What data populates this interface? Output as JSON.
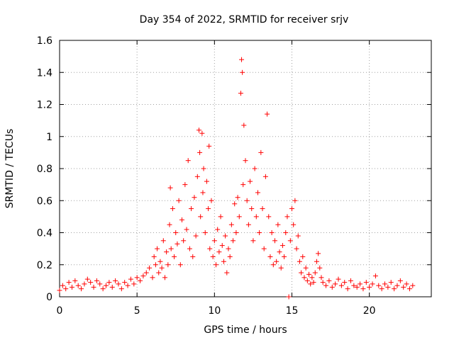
{
  "chart_data": {
    "type": "scatter",
    "title": "Day 354 of 2022, SRMTID for receiver srjv",
    "xlabel": "GPS time / hours",
    "ylabel": "SRMTID / TECUs",
    "xlim": [
      0,
      24
    ],
    "ylim": [
      0,
      1.6
    ],
    "xticks": [
      0,
      5,
      10,
      15,
      20
    ],
    "xtick_labels": [
      "0",
      "5",
      "10",
      "15",
      "20"
    ],
    "yticks": [
      0,
      0.2,
      0.4,
      0.6,
      0.8,
      1,
      1.2,
      1.4,
      1.6
    ],
    "ytick_labels": [
      "0",
      "0.2",
      "0.4",
      "0.6",
      "0.8",
      "1",
      "1.2",
      "1.4",
      "1.6"
    ],
    "grid": true,
    "marker": "+",
    "series": [
      {
        "name": "SRMTID",
        "color": "#ff0000",
        "points": [
          [
            0.0,
            0.04
          ],
          [
            0.2,
            0.07
          ],
          [
            0.4,
            0.05
          ],
          [
            0.6,
            0.09
          ],
          [
            0.8,
            0.06
          ],
          [
            1.0,
            0.1
          ],
          [
            1.2,
            0.07
          ],
          [
            1.4,
            0.05
          ],
          [
            1.6,
            0.08
          ],
          [
            1.8,
            0.11
          ],
          [
            2.0,
            0.09
          ],
          [
            2.2,
            0.06
          ],
          [
            2.4,
            0.1
          ],
          [
            2.6,
            0.08
          ],
          [
            2.8,
            0.05
          ],
          [
            3.0,
            0.07
          ],
          [
            3.2,
            0.09
          ],
          [
            3.4,
            0.06
          ],
          [
            3.6,
            0.1
          ],
          [
            3.8,
            0.08
          ],
          [
            4.0,
            0.05
          ],
          [
            4.2,
            0.09
          ],
          [
            4.4,
            0.07
          ],
          [
            4.6,
            0.11
          ],
          [
            4.8,
            0.08
          ],
          [
            5.0,
            0.12
          ],
          [
            5.2,
            0.1
          ],
          [
            5.4,
            0.13
          ],
          [
            5.6,
            0.15
          ],
          [
            5.8,
            0.18
          ],
          [
            6.0,
            0.12
          ],
          [
            6.1,
            0.25
          ],
          [
            6.2,
            0.2
          ],
          [
            6.3,
            0.3
          ],
          [
            6.4,
            0.15
          ],
          [
            6.5,
            0.22
          ],
          [
            6.6,
            0.18
          ],
          [
            6.7,
            0.35
          ],
          [
            6.8,
            0.12
          ],
          [
            6.9,
            0.28
          ],
          [
            7.0,
            0.2
          ],
          [
            7.1,
            0.45
          ],
          [
            7.15,
            0.68
          ],
          [
            7.2,
            0.3
          ],
          [
            7.3,
            0.55
          ],
          [
            7.4,
            0.25
          ],
          [
            7.5,
            0.4
          ],
          [
            7.6,
            0.33
          ],
          [
            7.7,
            0.6
          ],
          [
            7.8,
            0.2
          ],
          [
            7.9,
            0.48
          ],
          [
            8.0,
            0.35
          ],
          [
            8.1,
            0.7
          ],
          [
            8.2,
            0.42
          ],
          [
            8.3,
            0.85
          ],
          [
            8.4,
            0.3
          ],
          [
            8.5,
            0.55
          ],
          [
            8.6,
            0.25
          ],
          [
            8.7,
            0.62
          ],
          [
            8.8,
            0.38
          ],
          [
            8.9,
            0.75
          ],
          [
            9.0,
            1.04
          ],
          [
            9.05,
            0.9
          ],
          [
            9.1,
            0.5
          ],
          [
            9.2,
            1.02
          ],
          [
            9.25,
            0.65
          ],
          [
            9.3,
            0.8
          ],
          [
            9.4,
            0.4
          ],
          [
            9.5,
            0.72
          ],
          [
            9.6,
            0.55
          ],
          [
            9.65,
            0.94
          ],
          [
            9.7,
            0.3
          ],
          [
            9.8,
            0.6
          ],
          [
            9.9,
            0.25
          ],
          [
            10.0,
            0.35
          ],
          [
            10.1,
            0.2
          ],
          [
            10.2,
            0.42
          ],
          [
            10.3,
            0.28
          ],
          [
            10.4,
            0.5
          ],
          [
            10.5,
            0.32
          ],
          [
            10.6,
            0.22
          ],
          [
            10.7,
            0.38
          ],
          [
            10.8,
            0.15
          ],
          [
            10.9,
            0.3
          ],
          [
            11.0,
            0.25
          ],
          [
            11.1,
            0.45
          ],
          [
            11.2,
            0.35
          ],
          [
            11.3,
            0.58
          ],
          [
            11.4,
            0.4
          ],
          [
            11.5,
            0.62
          ],
          [
            11.6,
            0.5
          ],
          [
            11.7,
            1.27
          ],
          [
            11.75,
            1.48
          ],
          [
            11.8,
            1.4
          ],
          [
            11.85,
            0.7
          ],
          [
            11.9,
            1.07
          ],
          [
            12.0,
            0.85
          ],
          [
            12.1,
            0.6
          ],
          [
            12.2,
            0.45
          ],
          [
            12.3,
            0.72
          ],
          [
            12.4,
            0.55
          ],
          [
            12.5,
            0.35
          ],
          [
            12.6,
            0.8
          ],
          [
            12.7,
            0.5
          ],
          [
            12.8,
            0.65
          ],
          [
            12.9,
            0.4
          ],
          [
            13.0,
            0.9
          ],
          [
            13.1,
            0.55
          ],
          [
            13.2,
            0.3
          ],
          [
            13.3,
            0.75
          ],
          [
            13.4,
            1.14
          ],
          [
            13.5,
            0.5
          ],
          [
            13.6,
            0.25
          ],
          [
            13.7,
            0.4
          ],
          [
            13.8,
            0.2
          ],
          [
            13.9,
            0.35
          ],
          [
            14.0,
            0.22
          ],
          [
            14.1,
            0.45
          ],
          [
            14.2,
            0.28
          ],
          [
            14.3,
            0.18
          ],
          [
            14.4,
            0.32
          ],
          [
            14.5,
            0.25
          ],
          [
            14.6,
            0.4
          ],
          [
            14.7,
            0.5
          ],
          [
            14.8,
            0.0
          ],
          [
            14.9,
            0.35
          ],
          [
            15.0,
            0.55
          ],
          [
            15.1,
            0.45
          ],
          [
            15.2,
            0.6
          ],
          [
            15.3,
            0.3
          ],
          [
            15.4,
            0.38
          ],
          [
            15.5,
            0.22
          ],
          [
            15.6,
            0.15
          ],
          [
            15.7,
            0.25
          ],
          [
            15.8,
            0.12
          ],
          [
            15.9,
            0.18
          ],
          [
            16.0,
            0.1
          ],
          [
            16.1,
            0.14
          ],
          [
            16.2,
            0.08
          ],
          [
            16.3,
            0.12
          ],
          [
            16.4,
            0.09
          ],
          [
            16.5,
            0.15
          ],
          [
            16.6,
            0.22
          ],
          [
            16.7,
            0.27
          ],
          [
            16.8,
            0.18
          ],
          [
            16.9,
            0.12
          ],
          [
            17.0,
            0.09
          ],
          [
            17.2,
            0.07
          ],
          [
            17.4,
            0.1
          ],
          [
            17.6,
            0.06
          ],
          [
            17.8,
            0.08
          ],
          [
            18.0,
            0.11
          ],
          [
            18.2,
            0.07
          ],
          [
            18.4,
            0.09
          ],
          [
            18.6,
            0.05
          ],
          [
            18.8,
            0.1
          ],
          [
            19.0,
            0.07
          ],
          [
            19.2,
            0.06
          ],
          [
            19.4,
            0.08
          ],
          [
            19.6,
            0.05
          ],
          [
            19.8,
            0.09
          ],
          [
            20.0,
            0.06
          ],
          [
            20.2,
            0.08
          ],
          [
            20.4,
            0.13
          ],
          [
            20.6,
            0.07
          ],
          [
            20.8,
            0.05
          ],
          [
            21.0,
            0.08
          ],
          [
            21.2,
            0.06
          ],
          [
            21.4,
            0.09
          ],
          [
            21.6,
            0.05
          ],
          [
            21.8,
            0.07
          ],
          [
            22.0,
            0.1
          ],
          [
            22.2,
            0.06
          ],
          [
            22.4,
            0.08
          ],
          [
            22.6,
            0.05
          ],
          [
            22.8,
            0.07
          ]
        ]
      }
    ]
  }
}
